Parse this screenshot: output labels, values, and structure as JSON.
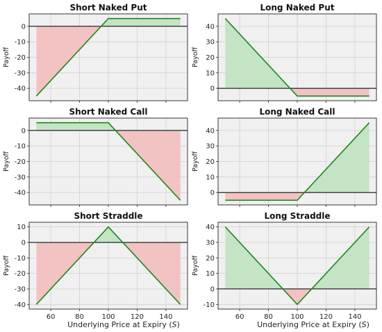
{
  "figure": {
    "xlabel_main": "Underlying Price at Expiry (",
    "xlabel_var": "S",
    "xlabel_close": ")",
    "colors": {
      "line": "#1a8a1a",
      "profit_fill": "#c5e3c5",
      "loss_fill": "#f3c2c2",
      "axes_bg": "#f0f0f0",
      "zero_line": "#111111",
      "grid": "#cfcfcf"
    }
  },
  "chart_data": [
    {
      "type": "line",
      "title": "Short Naked Put",
      "xlabel": "",
      "ylabel": "Payoff",
      "xlim": [
        45,
        155
      ],
      "ylim": [
        -48,
        8
      ],
      "xticks": [
        60,
        80,
        100,
        120,
        140
      ],
      "show_xticklabels": false,
      "yticks": [
        -40,
        -30,
        -20,
        -10,
        0
      ],
      "series": [
        {
          "x": [
            50,
            100,
            150
          ],
          "values": [
            -45,
            5,
            5
          ]
        }
      ]
    },
    {
      "type": "line",
      "title": "Long Naked Put",
      "xlabel": "",
      "ylabel": "Payoff",
      "xlim": [
        45,
        155
      ],
      "ylim": [
        -8,
        48
      ],
      "xticks": [
        60,
        80,
        100,
        120,
        140
      ],
      "show_xticklabels": false,
      "yticks": [
        0,
        10,
        20,
        30,
        40
      ],
      "series": [
        {
          "x": [
            50,
            100,
            150
          ],
          "values": [
            45,
            -5,
            -5
          ]
        }
      ]
    },
    {
      "type": "line",
      "title": "Short Naked Call",
      "xlabel": "",
      "ylabel": "Payoff",
      "xlim": [
        45,
        155
      ],
      "ylim": [
        -48,
        8
      ],
      "xticks": [
        60,
        80,
        100,
        120,
        140
      ],
      "show_xticklabels": false,
      "yticks": [
        -40,
        -30,
        -20,
        -10,
        0
      ],
      "series": [
        {
          "x": [
            50,
            100,
            150
          ],
          "values": [
            5,
            5,
            -45
          ]
        }
      ]
    },
    {
      "type": "line",
      "title": "Long Naked Call",
      "xlabel": "",
      "ylabel": "Payoff",
      "xlim": [
        45,
        155
      ],
      "ylim": [
        -8,
        48
      ],
      "xticks": [
        60,
        80,
        100,
        120,
        140
      ],
      "show_xticklabels": false,
      "yticks": [
        0,
        10,
        20,
        30,
        40
      ],
      "series": [
        {
          "x": [
            50,
            100,
            150
          ],
          "values": [
            -5,
            -5,
            45
          ]
        }
      ]
    },
    {
      "type": "line",
      "title": "Short Straddle",
      "xlabel": "Underlying Price at Expiry (S)",
      "ylabel": "Payoff",
      "xlim": [
        45,
        155
      ],
      "ylim": [
        -43,
        13
      ],
      "xticks": [
        60,
        80,
        100,
        120,
        140
      ],
      "show_xticklabels": true,
      "yticks": [
        -40,
        -30,
        -20,
        -10,
        0,
        10
      ],
      "series": [
        {
          "x": [
            50,
            100,
            150
          ],
          "values": [
            -40,
            10,
            -40
          ]
        }
      ]
    },
    {
      "type": "line",
      "title": "Long Straddle",
      "xlabel": "Underlying Price at Expiry (S)",
      "ylabel": "Payoff",
      "xlim": [
        45,
        155
      ],
      "ylim": [
        -13,
        43
      ],
      "xticks": [
        60,
        80,
        100,
        120,
        140
      ],
      "show_xticklabels": true,
      "yticks": [
        -10,
        0,
        10,
        20,
        30,
        40
      ],
      "series": [
        {
          "x": [
            50,
            100,
            150
          ],
          "values": [
            40,
            -10,
            40
          ]
        }
      ]
    }
  ]
}
